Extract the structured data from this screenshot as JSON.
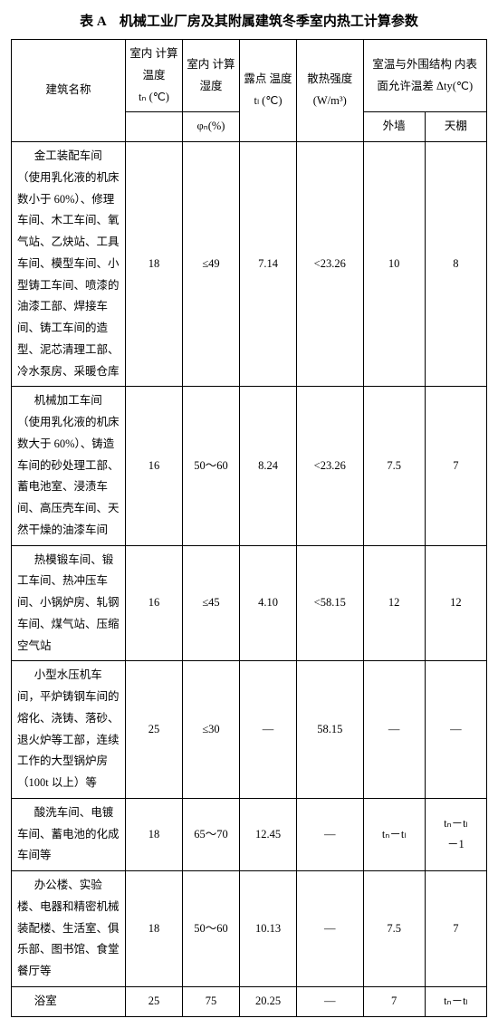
{
  "title": "表 A　机械工业厂房及其附属建筑冬季室内热工计算参数",
  "headers": {
    "name": "建筑名称",
    "temp_header": "室内\n计算温度",
    "temp_sym": "tₙ\n(℃)",
    "humid_header": "室内\n计算湿度",
    "humid_sym": "φₙ(%)",
    "dew_header": "露点\n温度",
    "dew_sym": "tₗ\n(℃)",
    "heat_header": "散热强度\n(W/m³)",
    "deltat_header": "室温与外围结构\n内表面允许温差\nΔty(℃)",
    "wall": "外墙",
    "roof": "天棚"
  },
  "rows": [
    {
      "name": "金工装配车间（使用乳化液的机床数小于 60%）、修理车间、木工车间、氧气站、乙炔站、工具车间、模型车间、小型铸工车间、喷漆的油漆工部、焊接车间、铸工车间的造型、泥芯清理工部、冷水泵房、采暖仓库",
      "temp": "18",
      "humid": "≤49",
      "dew": "7.14",
      "heat": "<23.26",
      "wall": "10",
      "roof": "8"
    },
    {
      "name": "机械加工车间（使用乳化液的机床数大于 60%）、铸造车间的砂处理工部、蓄电池室、浸渍车间、高压壳车间、天然干燥的油漆车间",
      "temp": "16",
      "humid": "50～60",
      "dew": "8.24",
      "heat": "<23.26",
      "wall": "7.5",
      "roof": "7"
    },
    {
      "name": "热模锻车间、锻工车间、热冲压车间、小锅炉房、轧钢车间、煤气站、压缩空气站",
      "temp": "16",
      "humid": "≤45",
      "dew": "4.10",
      "heat": "<58.15",
      "wall": "12",
      "roof": "12"
    },
    {
      "name": "小型水压机车间，平炉铸钢车间的熔化、浇铸、落砂、退火炉等工部，连续工作的大型锅炉房（100t 以上）等",
      "temp": "25",
      "humid": "≤30",
      "dew": "—",
      "heat": "58.15",
      "wall": "—",
      "roof": "—"
    },
    {
      "name": "酸洗车间、电镀车间、蓄电池的化成车间等",
      "temp": "18",
      "humid": "65～70",
      "dew": "12.45",
      "heat": "—",
      "wall": "tₙ－tₗ",
      "roof": "tₙ－tₗ\n－1"
    },
    {
      "name": "办公楼、实验楼、电器和精密机械装配楼、生活室、俱乐部、图书馆、食堂餐厅等",
      "temp": "18",
      "humid": "50～60",
      "dew": "10.13",
      "heat": "—",
      "wall": "7.5",
      "roof": "7"
    },
    {
      "name": "浴室",
      "temp": "25",
      "humid": "75",
      "dew": "20.25",
      "heat": "—",
      "wall": "7",
      "roof": "tₙ－tₗ"
    }
  ]
}
